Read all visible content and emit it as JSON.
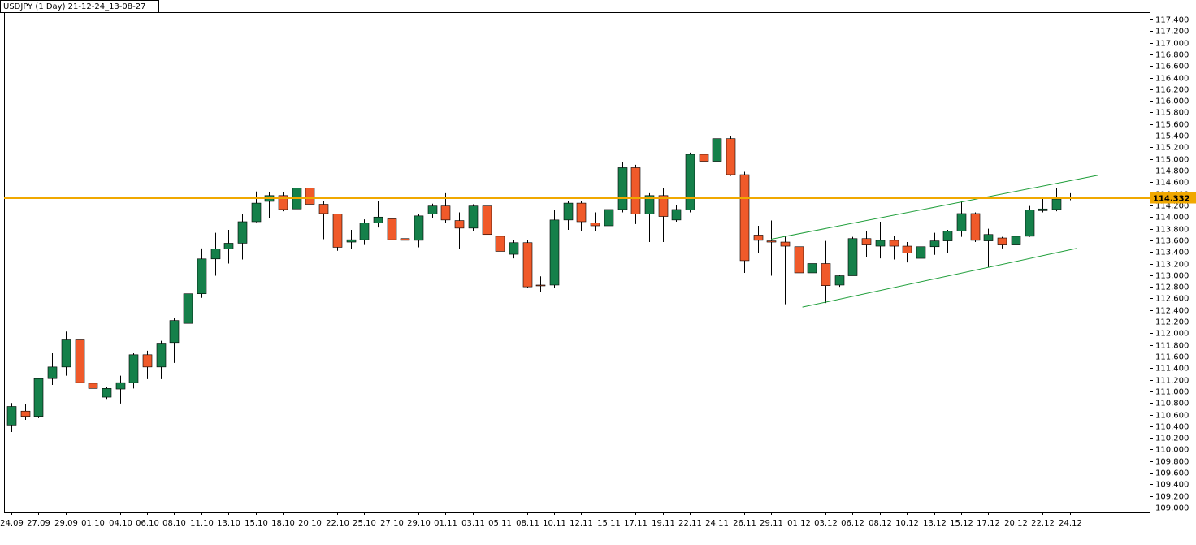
{
  "chart_data": {
    "type": "candlestick",
    "title": "USDJPY (1 Day) 21-12-24_13-08-27",
    "categories": [
      "24.09",
      null,
      "27.09",
      null,
      "29.09",
      null,
      "01.10",
      null,
      "04.10",
      null,
      "06.10",
      null,
      "08.10",
      null,
      "11.10",
      null,
      "13.10",
      null,
      "15.10",
      null,
      "18.10",
      null,
      "20.10",
      null,
      "22.10",
      null,
      "25.10",
      null,
      "27.10",
      null,
      "29.10",
      null,
      "01.11",
      null,
      "03.11",
      null,
      "05.11",
      null,
      "08.11",
      null,
      "10.11",
      null,
      "12.11",
      null,
      "15.11",
      null,
      "17.11",
      null,
      "19.11",
      null,
      "22.11",
      null,
      "24.11",
      null,
      "26.11",
      null,
      "29.11",
      null,
      "01.12",
      null,
      "03.12",
      null,
      "06.12",
      null,
      "08.12",
      null,
      "10.12",
      null,
      "13.12",
      null,
      "15.12",
      null,
      "17.12",
      null,
      "20.12",
      null,
      "22.12",
      null,
      "24.12"
    ],
    "open": [
      110.42,
      110.66,
      110.57,
      111.22,
      111.42,
      111.9,
      111.14,
      110.9,
      111.04,
      111.15,
      111.63,
      111.42,
      111.84,
      112.17,
      112.68,
      113.28,
      113.45,
      113.55,
      113.92,
      114.27,
      114.37,
      114.14,
      114.5,
      114.22,
      114.05,
      113.57,
      113.61,
      113.9,
      113.97,
      113.63,
      113.6,
      114.05,
      114.19,
      113.94,
      113.81,
      114.19,
      113.67,
      113.36,
      113.56,
      112.83,
      112.83,
      113.95,
      114.24,
      113.9,
      113.85,
      114.13,
      114.85,
      114.05,
      114.37,
      113.95,
      114.12,
      115.08,
      114.96,
      115.35,
      114.73,
      113.69,
      113.59,
      113.57,
      113.49,
      113.04,
      113.2,
      112.83,
      112.99,
      113.63,
      113.5,
      113.6,
      113.5,
      113.29,
      113.49,
      113.59,
      113.76,
      114.06,
      113.59,
      113.64,
      113.52,
      113.67,
      114.11,
      114.13,
      114.33
    ],
    "high": [
      110.8,
      110.78,
      111.22,
      111.66,
      112.03,
      112.06,
      111.28,
      111.08,
      111.27,
      111.66,
      111.7,
      111.87,
      112.26,
      112.71,
      113.46,
      113.73,
      113.78,
      114.06,
      114.44,
      114.43,
      114.43,
      114.66,
      114.55,
      114.27,
      114.05,
      113.78,
      113.96,
      114.27,
      114.05,
      113.85,
      114.06,
      114.23,
      114.41,
      114.08,
      114.22,
      114.24,
      114.02,
      113.6,
      113.6,
      112.98,
      114.13,
      114.27,
      114.27,
      114.08,
      114.24,
      114.94,
      114.9,
      114.41,
      114.5,
      114.2,
      115.11,
      115.22,
      115.49,
      115.39,
      114.78,
      113.85,
      113.94,
      113.68,
      113.62,
      113.29,
      113.59,
      113.01,
      113.66,
      113.76,
      113.92,
      113.68,
      113.57,
      113.52,
      113.73,
      113.78,
      114.27,
      114.08,
      113.8,
      113.66,
      113.7,
      114.19,
      114.33,
      114.5,
      114.41
    ],
    "low": [
      110.3,
      110.51,
      110.54,
      111.11,
      111.27,
      111.13,
      110.89,
      110.87,
      110.79,
      111.05,
      111.21,
      111.21,
      111.49,
      112.16,
      112.61,
      112.99,
      113.2,
      113.27,
      113.91,
      113.99,
      114.1,
      113.88,
      114.1,
      113.62,
      113.42,
      113.45,
      113.52,
      113.82,
      113.38,
      113.22,
      113.48,
      113.99,
      113.9,
      113.45,
      113.76,
      113.69,
      113.38,
      113.29,
      112.78,
      112.71,
      112.78,
      113.78,
      113.76,
      113.76,
      113.83,
      114.08,
      113.88,
      113.57,
      113.57,
      113.92,
      114.08,
      114.47,
      114.83,
      114.71,
      113.04,
      113.38,
      112.99,
      112.5,
      112.61,
      112.71,
      112.52,
      112.8,
      112.99,
      113.31,
      113.29,
      113.27,
      113.22,
      113.27,
      113.35,
      113.38,
      113.66,
      113.57,
      113.13,
      113.46,
      113.29,
      113.66,
      114.08,
      114.1,
      114.29
    ],
    "close": [
      110.74,
      110.57,
      111.22,
      111.42,
      111.9,
      111.15,
      111.05,
      111.05,
      111.15,
      111.63,
      111.42,
      111.83,
      112.22,
      112.68,
      113.28,
      113.45,
      113.55,
      113.92,
      114.24,
      114.37,
      114.13,
      114.5,
      114.22,
      114.06,
      113.48,
      113.61,
      113.9,
      114.0,
      113.61,
      113.6,
      114.02,
      114.19,
      113.95,
      113.81,
      114.19,
      113.7,
      113.41,
      113.56,
      112.8,
      112.82,
      113.95,
      114.24,
      113.92,
      113.85,
      114.13,
      114.85,
      114.05,
      114.37,
      114.01,
      114.13,
      115.08,
      114.96,
      115.35,
      114.73,
      113.25,
      113.6,
      113.57,
      113.5,
      113.04,
      113.2,
      112.82,
      112.99,
      113.63,
      113.52,
      113.6,
      113.5,
      113.38,
      113.49,
      113.59,
      113.76,
      114.06,
      113.6,
      113.7,
      113.52,
      113.67,
      114.12,
      114.14,
      114.31,
      114.332
    ],
    "up_color": "#15804a",
    "down_color": "#f05a2a",
    "last_price": 114.332,
    "last_price_color": "#f0a800",
    "trendlines": [
      {
        "color": "#1f9e3a",
        "x": [
          56,
          80.1
        ],
        "y": [
          113.62,
          114.72
        ]
      },
      {
        "color": "#1f9e3a",
        "x": [
          58.3,
          78.5
        ],
        "y": [
          112.45,
          113.46
        ]
      }
    ],
    "ylim": [
      108.93,
      117.526
    ],
    "yticks": [
      {
        "value": 109,
        "label": "109.000"
      },
      {
        "value": 109.2,
        "label": "109.200"
      },
      {
        "value": 109.4,
        "label": "109.400"
      },
      {
        "value": 109.6,
        "label": "109.600"
      },
      {
        "value": 109.8,
        "label": "109.800"
      },
      {
        "value": 110,
        "label": "110.000"
      },
      {
        "value": 110.2,
        "label": "110.200"
      },
      {
        "value": 110.4,
        "label": "110.400"
      },
      {
        "value": 110.6,
        "label": "110.600"
      },
      {
        "value": 110.8,
        "label": "110.800"
      },
      {
        "value": 111,
        "label": "111.000"
      },
      {
        "value": 111.2,
        "label": "111.200"
      },
      {
        "value": 111.4,
        "label": "111.400"
      },
      {
        "value": 111.6,
        "label": "111.600"
      },
      {
        "value": 111.8,
        "label": "111.800"
      },
      {
        "value": 112,
        "label": "112.000"
      },
      {
        "value": 112.2,
        "label": "112.200"
      },
      {
        "value": 112.4,
        "label": "112.400"
      },
      {
        "value": 112.6,
        "label": "112.600"
      },
      {
        "value": 112.8,
        "label": "112.800"
      },
      {
        "value": 113,
        "label": "113.000"
      },
      {
        "value": 113.2,
        "label": "113.200"
      },
      {
        "value": 113.4,
        "label": "113.400"
      },
      {
        "value": 113.6,
        "label": "113.600"
      },
      {
        "value": 113.8,
        "label": "113.800"
      },
      {
        "value": 114,
        "label": "114.000"
      },
      {
        "value": 114.2,
        "label": "114.200"
      },
      {
        "value": 114.4,
        "label": "114.400"
      },
      {
        "value": 114.6,
        "label": "114.600"
      },
      {
        "value": 114.8,
        "label": "114.800"
      },
      {
        "value": 115,
        "label": "115.000"
      },
      {
        "value": 115.2,
        "label": "115.200"
      },
      {
        "value": 115.4,
        "label": "115.400"
      },
      {
        "value": 115.6,
        "label": "115.600"
      },
      {
        "value": 115.8,
        "label": "115.800"
      },
      {
        "value": 116,
        "label": "116.000"
      },
      {
        "value": 116.2,
        "label": "116.200"
      },
      {
        "value": 116.4,
        "label": "116.400"
      },
      {
        "value": 116.6,
        "label": "116.600"
      },
      {
        "value": 116.8,
        "label": "116.800"
      },
      {
        "value": 117,
        "label": "117.000"
      },
      {
        "value": 117.2,
        "label": "117.200"
      },
      {
        "value": 117.4,
        "label": "117.400"
      }
    ]
  }
}
